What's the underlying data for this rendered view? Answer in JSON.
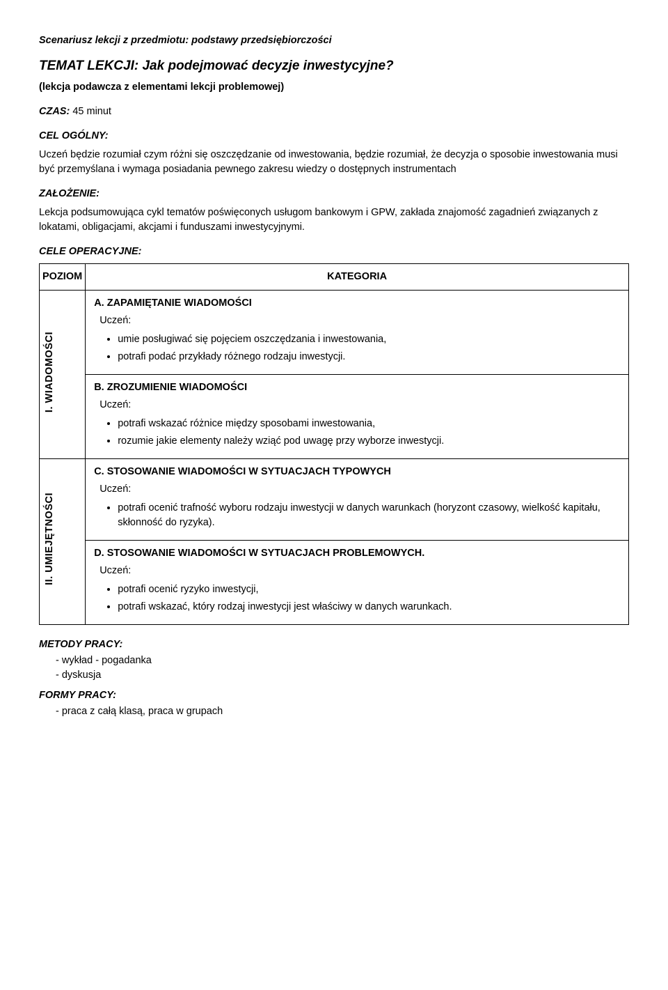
{
  "header": {
    "scenario_line": "Scenariusz lekcji z przedmiotu: podstawy przedsiębiorczości",
    "topic_prefix": "TEMAT LEKCJI: ",
    "topic": "Jak podejmować decyzje inwestycyjne?",
    "subtitle": "(lekcja podawcza z elementami lekcji problemowej)",
    "czas_label": "CZAS:",
    "czas_value": " 45 minut",
    "cel_ogolny_label": "CEL OGÓLNY:",
    "cel_ogolny_text": "Uczeń będzie rozumiał czym różni się oszczędzanie od inwestowania, będzie rozumiał, że decyzja o sposobie inwestowania musi być przemyślana i wymaga posiadania pewnego zakresu wiedzy o dostępnych instrumentach",
    "zalozenie_label": "ZAŁOŻENIE:",
    "zalozenie_text": "Lekcja podsumowująca cykl tematów poświęconych usługom bankowym i GPW, zakłada znajomość zagadnień związanych z lokatami, obligacjami, akcjami i funduszami inwestycyjnymi.",
    "cele_op_label": "CELE OPERACYJNE:"
  },
  "table": {
    "col_poziom": "POZIOM",
    "col_kategoria": "KATEGORIA",
    "row1_vert": "I. WIADOMOŚCI",
    "row2_vert": "II. UMIEJĘTNOŚCI",
    "uczen": "Uczeń:",
    "catA_title": "A. ZAPAMIĘTANIE WIADOMOŚCI",
    "catA_items": [
      "umie posługiwać się pojęciem oszczędzania i inwestowania,",
      "potrafi podać przykłady różnego rodzaju inwestycji."
    ],
    "catB_title": "B. ZROZUMIENIE WIADOMOŚCI",
    "catB_items": [
      "potrafi wskazać różnice między sposobami inwestowania,",
      "rozumie jakie elementy należy wziąć pod uwagę przy wyborze inwestycji."
    ],
    "catC_title": "C. STOSOWANIE WIADOMOŚCI W SYTUACJACH TYPOWYCH",
    "catC_items": [
      "potrafi ocenić trafność wyboru rodzaju inwestycji w danych warunkach (horyzont czasowy, wielkość kapitału, skłonność do ryzyka)."
    ],
    "catD_title": "D. STOSOWANIE WIADOMOŚCI W SYTUACJACH PROBLEMOWYCH.",
    "catD_items": [
      "potrafi ocenić ryzyko inwestycji,",
      "potrafi wskazać, który rodzaj inwestycji jest właściwy w danych warunkach."
    ]
  },
  "footer": {
    "metody_label": "METODY PRACY:",
    "metody_items": [
      "wykład - pogadanka",
      "dyskusja"
    ],
    "formy_label": "FORMY PRACY:",
    "formy_items": [
      "praca z całą klasą, praca w grupach"
    ]
  },
  "style": {
    "text_color": "#000000",
    "bg_color": "#ffffff",
    "border_color": "#000000",
    "body_fontsize": 14.5,
    "topic_fontsize": 19
  }
}
